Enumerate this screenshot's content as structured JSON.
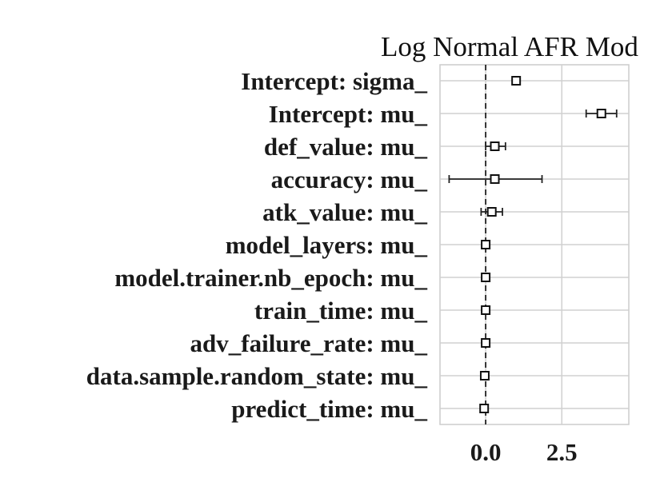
{
  "chart_data": {
    "type": "scatter",
    "subtype": "forest-plot",
    "title": "Log Normal AFR Mod",
    "xlabel": "",
    "ylabel": "",
    "xlim": [
      -1.5,
      4.7
    ],
    "xticks": [
      0.0,
      2.5
    ],
    "xtick_labels": [
      "0.0",
      "2.5"
    ],
    "reference_line": 0.0,
    "grid": true,
    "categories": [
      "Intercept: sigma_",
      "Intercept: mu_",
      "def_value: mu_",
      "accuracy: mu_",
      "atk_value: mu_",
      "model_layers: mu_",
      "model.trainer.nb_epoch: mu_",
      "train_time: mu_",
      "adv_failure_rate: mu_",
      "data.sample.random_state: mu_",
      "predict_time: mu_"
    ],
    "points": [
      {
        "label": "Intercept: sigma_",
        "value": 1.0,
        "lower": 1.0,
        "upper": 1.0
      },
      {
        "label": "Intercept: mu_",
        "value": 3.8,
        "lower": 3.3,
        "upper": 4.3
      },
      {
        "label": "def_value: mu_",
        "value": 0.3,
        "lower": 0.0,
        "upper": 0.65
      },
      {
        "label": "accuracy: mu_",
        "value": 0.3,
        "lower": -1.2,
        "upper": 1.85
      },
      {
        "label": "atk_value: mu_",
        "value": 0.2,
        "lower": -0.15,
        "upper": 0.55
      },
      {
        "label": "model_layers: mu_",
        "value": 0.0,
        "lower": 0.0,
        "upper": 0.0
      },
      {
        "label": "model.trainer.nb_epoch: mu_",
        "value": 0.0,
        "lower": 0.0,
        "upper": 0.0
      },
      {
        "label": "train_time: mu_",
        "value": 0.0,
        "lower": 0.0,
        "upper": 0.0
      },
      {
        "label": "adv_failure_rate: mu_",
        "value": 0.0,
        "lower": 0.0,
        "upper": 0.0
      },
      {
        "label": "data.sample.random_state: mu_",
        "value": -0.03,
        "lower": -0.03,
        "upper": -0.03
      },
      {
        "label": "predict_time: mu_",
        "value": -0.05,
        "lower": -0.05,
        "upper": -0.05
      }
    ]
  }
}
